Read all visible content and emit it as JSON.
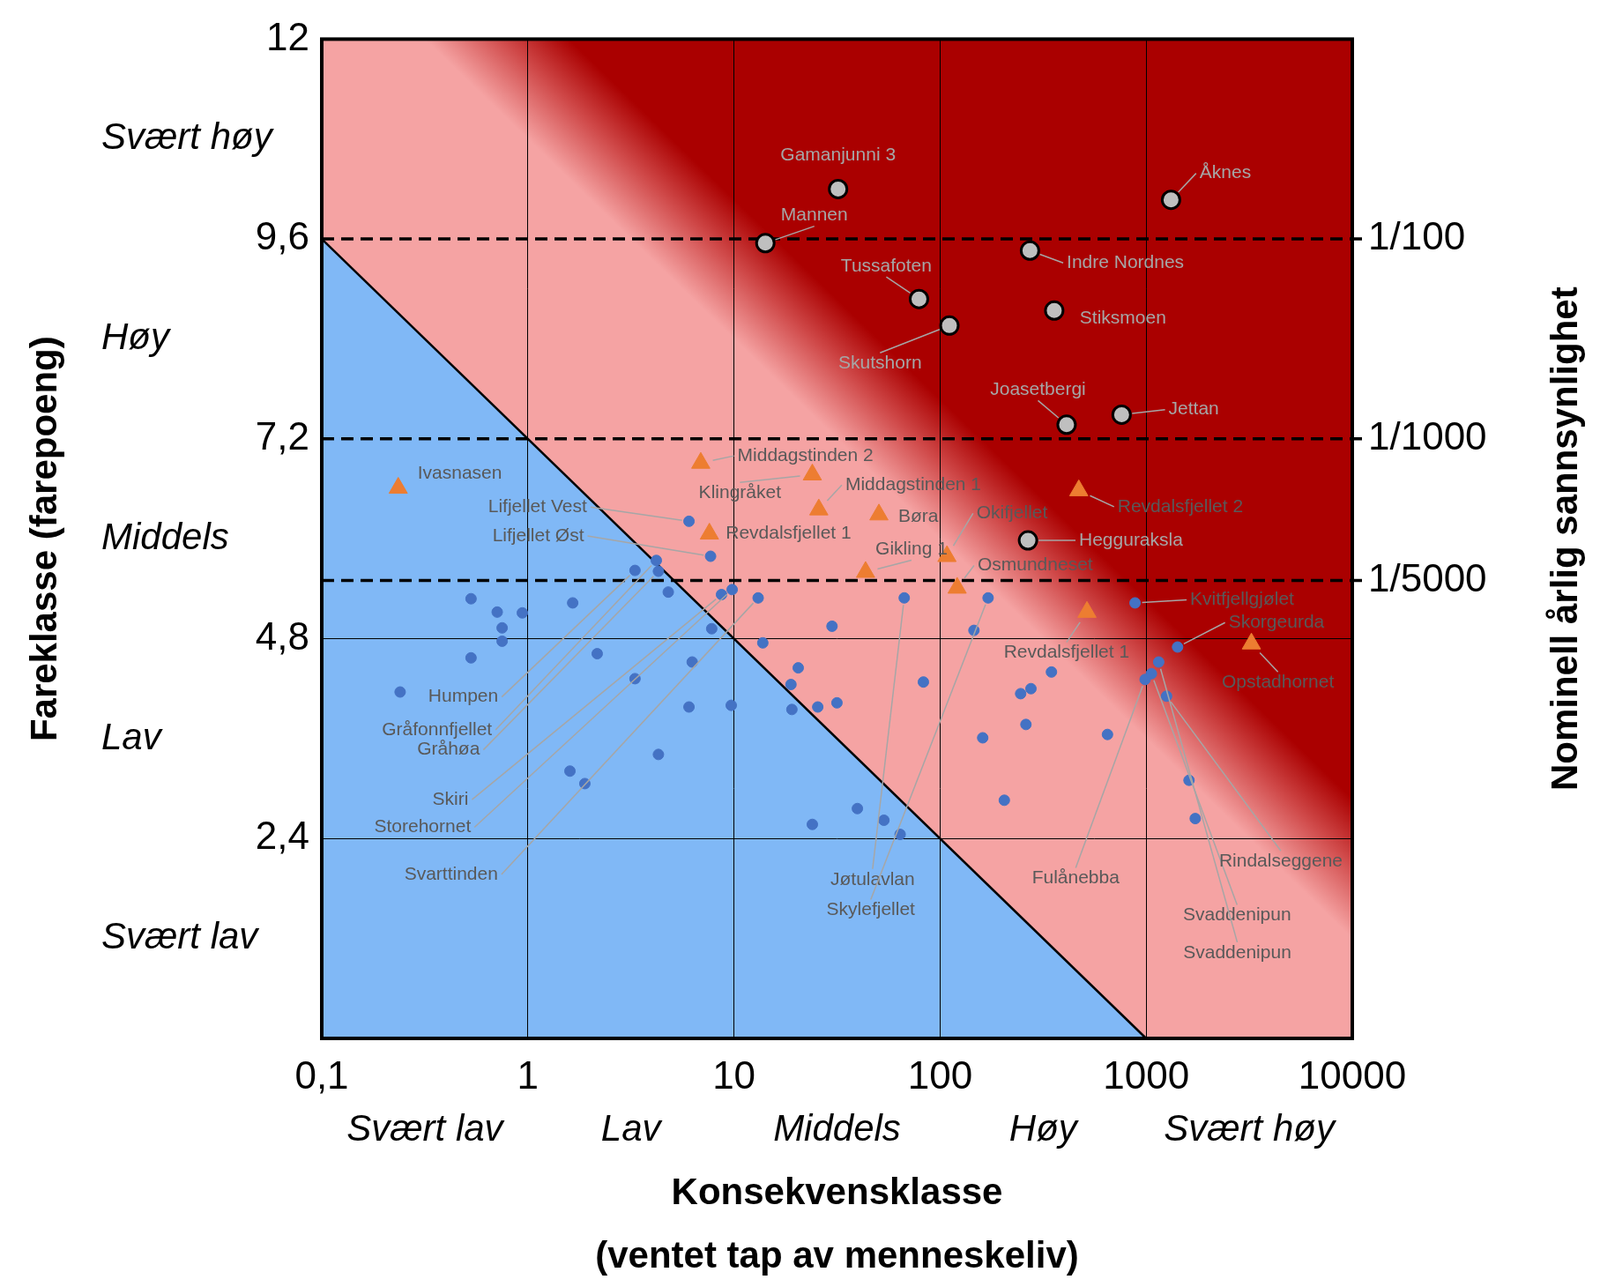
{
  "chart_data": {
    "type": "scatter",
    "xlabel": [
      "Konsekvensklasse",
      "(ventet tap av menneskeliv)"
    ],
    "ylabel": "Fareklasse (farepoeng)",
    "y2label": "Nominell årlig sannsynlighet",
    "log": "x",
    "grid": true,
    "xlim": [
      0.1,
      10000
    ],
    "xticks": [
      {
        "value": 0.1,
        "label": "0,1"
      },
      1,
      10,
      100,
      1000,
      10000
    ],
    "ylim": [
      0,
      12
    ],
    "yticks": [
      {
        "value": 2.4,
        "label": "2,4"
      },
      {
        "value": 4.8,
        "label": "4,8"
      },
      {
        "value": 7.2,
        "label": "7,2"
      },
      {
        "value": 9.6,
        "label": "9,6"
      },
      12
    ],
    "y2lim": [
      0,
      12
    ],
    "y2ticks": [
      {
        "value": 9.6,
        "label": "1/100"
      },
      {
        "value": 7.2,
        "label": "1/1000"
      },
      {
        "value": 5.5,
        "label": "1/5000"
      }
    ],
    "x_classes": [
      "Svært lav",
      "Lav",
      "Middels",
      "Høy",
      "Svært høy"
    ],
    "y_classes": [
      "Svært lav",
      "Lav",
      "Middels",
      "Høy",
      "Svært høy"
    ],
    "risk_line": {
      "x": [
        0.1,
        1000
      ],
      "y": [
        9.6,
        0
      ]
    },
    "series": [
      {
        "color": "#bfbfbf",
        "marker": "ringed",
        "x": [
          32,
          1320,
          14.2,
          273,
          79,
          358,
          111,
          411,
          760,
          267
        ],
        "y": [
          10.2,
          10.07,
          9.55,
          9.46,
          8.88,
          8.74,
          8.56,
          7.37,
          7.49,
          5.98
        ],
        "labels": [
          "Gamanjunni 3",
          "Åknes",
          "Mannen",
          "Indre Nordnes",
          "Tussafoten",
          "Stiksmoen",
          "Skutshorn",
          "Joasetbergi",
          "Jettan",
          "Hegguraksla"
        ]
      },
      {
        "color": "#ed7d31",
        "marker": "triangle",
        "x": [
          0.235,
          6.9,
          24,
          25.8,
          50.5,
          7.6,
          108,
          43.5,
          121,
          471,
          516,
          3240
        ],
        "y": [
          6.61,
          6.91,
          6.77,
          6.35,
          6.29,
          6.06,
          5.79,
          5.6,
          5.41,
          6.58,
          5.12,
          4.74
        ],
        "labels": [
          "Ivasnasen",
          "Middagstinden 2",
          "Klingråket",
          "Middagstinden 1",
          "Børa",
          "Revdalsfjellet 1",
          "Okifjellet",
          "Gikling 1",
          "Osmundneset",
          "Revdalsfjellet 2",
          "Revdalsfjellet 1",
          "Opstadhornet"
        ]
      },
      {
        "color": "#4472c4",
        "marker": "circle",
        "x": [
          6.05,
          7.7,
          3.31,
          4.2,
          4.3,
          8.7,
          9.8,
          13.1,
          67,
          171,
          883,
          1420,
          988,
          1060,
          1150,
          1256,
          0.53,
          0.71,
          0.94,
          0.75,
          0.75,
          1.65,
          0.53,
          0.24,
          2.17,
          3.31,
          4.8,
          7.8,
          6.27,
          6.05,
          9.7,
          4.3,
          1.6,
          1.89,
          13.8,
          29.9,
          20.5,
          18.9,
          19.1,
          25.5,
          31.6,
          83,
          146,
          161,
          39.7,
          53.4,
          64,
          24,
          205,
          246,
          276,
          261,
          347,
          649,
          1614,
          1730
        ],
        "y": [
          6.21,
          5.79,
          5.62,
          5.74,
          5.61,
          5.33,
          5.39,
          5.29,
          5.29,
          5.29,
          5.23,
          4.7,
          4.31,
          4.38,
          4.52,
          4.11,
          5.28,
          5.12,
          5.11,
          4.93,
          4.77,
          5.23,
          4.57,
          4.16,
          4.62,
          4.32,
          5.36,
          4.92,
          4.52,
          3.98,
          4.0,
          3.41,
          3.21,
          3.06,
          4.75,
          4.95,
          4.45,
          4.25,
          3.95,
          3.98,
          4.03,
          4.28,
          4.9,
          3.61,
          2.76,
          2.62,
          2.45,
          2.57,
          2.86,
          4.14,
          4.2,
          3.77,
          4.4,
          3.65,
          3.1,
          2.64
        ],
        "labels": [
          "Lifjellet Vest",
          "Lifjellet Øst",
          "Humpen",
          "Gråfonnfjellet",
          "Gråhøa",
          "Skiri",
          "Storehornet",
          "Svarttinden",
          "Jøtulavlan",
          "Skylefjellet",
          "Kvitfjellgjølet",
          "Skorgeurda",
          "Fulånebba",
          "Svaddenipun",
          "Svaddenipun",
          "Rindalseggene",
          null,
          null,
          null,
          null,
          null,
          null,
          null,
          null,
          null,
          null,
          null,
          null,
          null,
          null,
          null,
          null,
          null,
          null,
          null,
          null,
          null,
          null,
          null,
          null,
          null,
          null,
          null,
          null,
          null,
          null,
          null,
          null,
          null,
          null,
          null,
          null,
          null,
          null,
          null,
          null
        ]
      }
    ]
  }
}
